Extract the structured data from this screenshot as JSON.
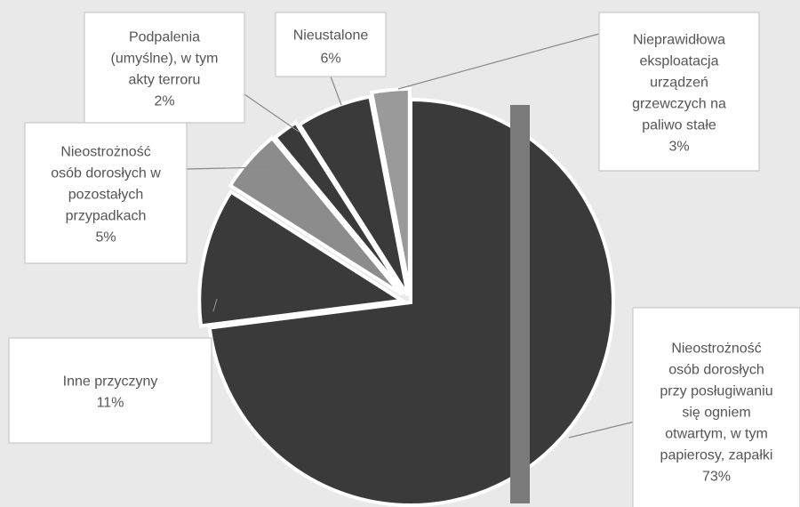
{
  "chart_data": {
    "type": "pie",
    "title": "",
    "slices": [
      {
        "label_lines": [
          "Nieostrożność",
          "osób dorosłych",
          "przy posługiwaniu",
          "się ogniem",
          "otwartym, w tym",
          "papierosy, zapałki"
        ],
        "percent_label": "73%",
        "value": 73,
        "color": "#3a3a3a"
      },
      {
        "label_lines": [
          "Inne przyczyny"
        ],
        "percent_label": "11%",
        "value": 11,
        "color": "#3a3a3a"
      },
      {
        "label_lines": [
          "Nieostrożność",
          "osób dorosłych w",
          "pozostałych",
          "przypadkach"
        ],
        "percent_label": "5%",
        "value": 5,
        "color": "#8c8c8c"
      },
      {
        "label_lines": [
          "Podpalenia",
          "(umyślne), w tym",
          "akty terroru"
        ],
        "percent_label": "2%",
        "value": 2,
        "color": "#3a3a3a"
      },
      {
        "label_lines": [
          "Nieustalone"
        ],
        "percent_label": "6%",
        "value": 6,
        "color": "#3a3a3a"
      },
      {
        "label_lines": [
          "Nieprawidłowa",
          "eksploatacja",
          "urządzeń",
          "grzewczych na",
          "paliwo stałe"
        ],
        "percent_label": "3%",
        "value": 3,
        "color": "#9a9a9a"
      }
    ]
  }
}
